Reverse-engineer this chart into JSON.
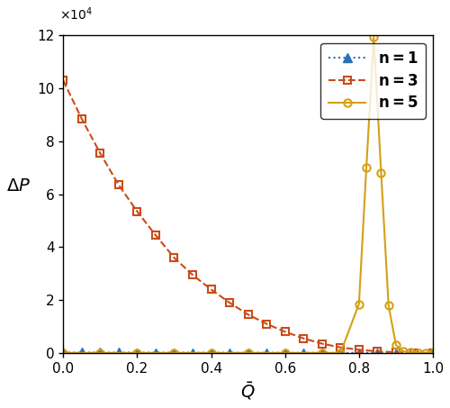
{
  "title": "",
  "xlabel": "$\\bar{Q}$",
  "ylabel": "$\\Delta P$",
  "xlim": [
    0,
    1.0
  ],
  "ylim": [
    0,
    120000
  ],
  "colors_n1": "#2871b8",
  "colors_n3": "#c94c1a",
  "colors_n5": "#d4a017",
  "n1_Q": [
    0.0,
    0.05,
    0.1,
    0.15,
    0.2,
    0.25,
    0.3,
    0.35,
    0.4,
    0.45,
    0.5,
    0.55,
    0.6,
    0.65,
    0.7,
    0.75,
    0.8,
    0.85,
    0.9,
    0.95,
    1.0
  ],
  "n1_dP": [
    150,
    140,
    130,
    120,
    110,
    100,
    90,
    80,
    70,
    65,
    55,
    48,
    42,
    35,
    28,
    22,
    18,
    14,
    10,
    6,
    3
  ],
  "n3_Q": [
    0.0,
    0.05,
    0.1,
    0.15,
    0.2,
    0.25,
    0.3,
    0.35,
    0.4,
    0.45,
    0.5,
    0.55,
    0.6,
    0.65,
    0.7,
    0.75,
    0.8,
    0.85,
    0.9,
    0.95,
    1.0
  ],
  "n3_dP": [
    103000,
    88500,
    75500,
    63500,
    53500,
    44500,
    36000,
    29500,
    24000,
    19000,
    14500,
    11000,
    8000,
    5500,
    3500,
    2100,
    1200,
    600,
    250,
    80,
    20
  ],
  "n5_Q": [
    0.0,
    0.1,
    0.2,
    0.3,
    0.4,
    0.5,
    0.6,
    0.7,
    0.75,
    0.8,
    0.82,
    0.84,
    0.86,
    0.88,
    0.9,
    0.92,
    0.94,
    0.96,
    0.98,
    1.0
  ],
  "n5_dP": [
    0,
    0,
    0,
    0,
    0,
    0,
    0,
    0,
    0,
    18500,
    70000,
    119500,
    68000,
    18000,
    3000,
    600,
    150,
    50,
    15,
    5
  ],
  "background_color": "#ffffff",
  "marker_size_n1": 7,
  "marker_size_n3": 6,
  "marker_size_n5": 6,
  "linewidth": 1.5,
  "fontsize_label": 14,
  "fontsize_legend": 12,
  "fontsize_tick": 11,
  "yticks": [
    0,
    20000,
    40000,
    60000,
    80000,
    100000,
    120000
  ],
  "xticks": [
    0,
    0.2,
    0.4,
    0.6,
    0.8,
    1.0
  ]
}
